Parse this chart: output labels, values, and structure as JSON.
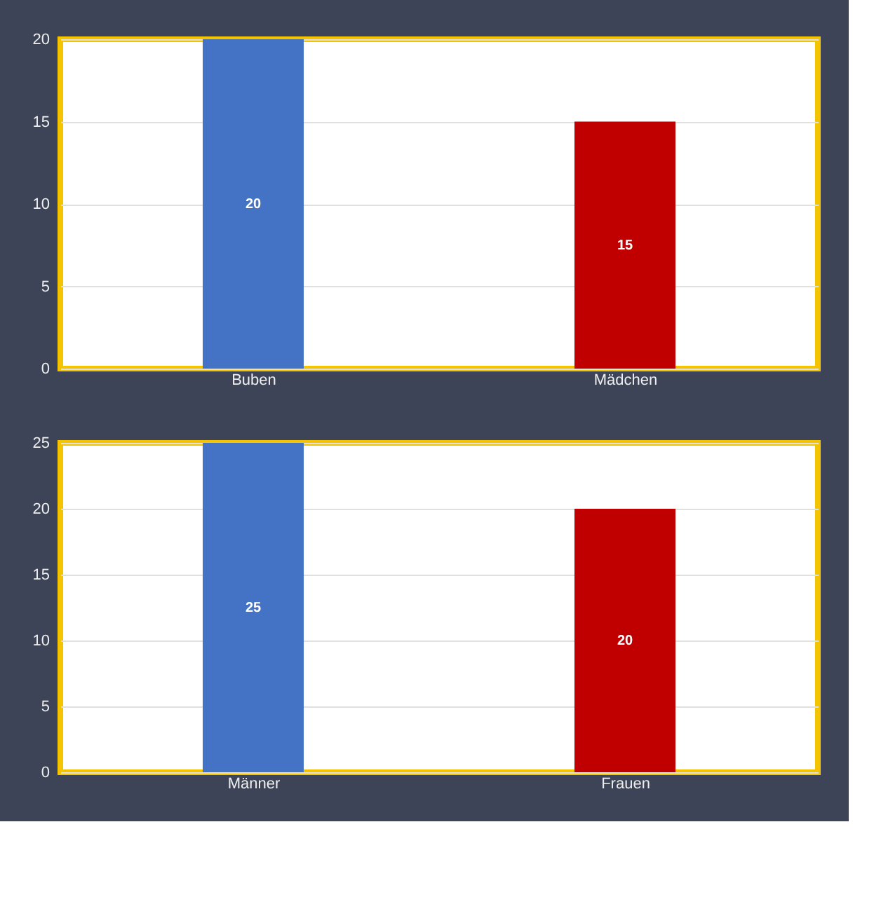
{
  "chart_data": [
    {
      "type": "bar",
      "categories": [
        "Buben",
        "Mädchen"
      ],
      "values": [
        20,
        15
      ],
      "colors": [
        "#4472c4",
        "#c00000"
      ],
      "ylim": [
        0,
        20
      ],
      "yticks": [
        0,
        5,
        10,
        15,
        20
      ],
      "grid": "y",
      "data_labels": true
    },
    {
      "type": "bar",
      "categories": [
        "Männer",
        "Frauen"
      ],
      "values": [
        25,
        20
      ],
      "colors": [
        "#4472c4",
        "#c00000"
      ],
      "ylim": [
        0,
        25
      ],
      "yticks": [
        0,
        5,
        10,
        15,
        20,
        25
      ],
      "grid": "y",
      "data_labels": true
    }
  ]
}
